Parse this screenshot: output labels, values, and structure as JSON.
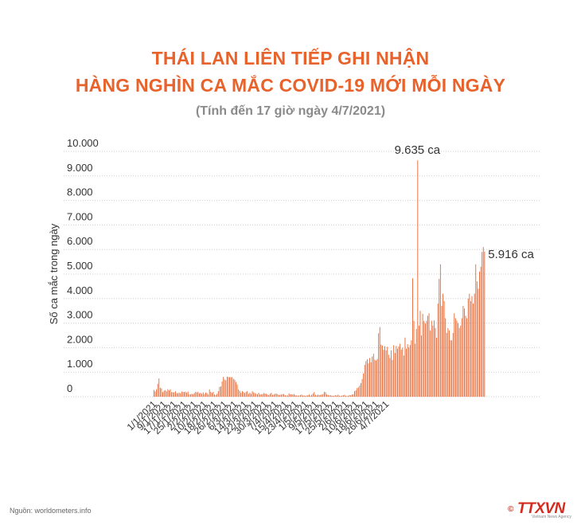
{
  "header": {
    "title_line1": "THÁI LAN LIÊN TIẾP GHI NHẬN",
    "title_line2": "HÀNG NGHÌN CA MẮC COVID-19 MỚI MỖI NGÀY",
    "subtitle": "(Tính đến 17 giờ ngày 4/7/2021)"
  },
  "footer": {
    "source": "Nguồn: worldometers.info",
    "logo_text": "TTXVN",
    "logo_sub": "Vietnam News Agency"
  },
  "colors": {
    "title": "#e8622c",
    "bar": "#e8622c",
    "axis_text": "#333333",
    "grid": "#cfcfcf"
  },
  "chart_data": {
    "type": "bar",
    "title": "",
    "xlabel": "",
    "ylabel": "Số ca mắc trong ngày",
    "ylim": [
      0,
      10000
    ],
    "y_ticks": [
      "0",
      "1.000",
      "2.000",
      "3.000",
      "4.000",
      "5.000",
      "6.000",
      "7.000",
      "8.000",
      "9.000",
      "10.000"
    ],
    "grid": true,
    "x_tick_labels": [
      "1/1/2021",
      "9/1/2021",
      "17/1/2021",
      "25/1/2021",
      "2/2/2021",
      "10/2/2021",
      "18/2/2021",
      "26/2/2021",
      "6/3/2021",
      "14/3/2021",
      "22/3/2021",
      "30/3/2021",
      "7/4/2021",
      "15/4/2021",
      "23/4/2021",
      "1/5/2021",
      "9/5/2021",
      "17/5/2021",
      "25/5/2021",
      "2/6/2021",
      "10/6/2021",
      "18/6/2021",
      "26/6/2021",
      "4/7/2021"
    ],
    "annotations": [
      {
        "text": "9.635 ca",
        "value": 9635
      },
      {
        "text": "5.916 ca",
        "value": 5916
      }
    ],
    "series": [
      {
        "values": [
          279,
          216,
          305,
          527,
          745,
          365,
          339,
          188,
          249,
          271,
          222,
          308,
          258,
          300,
          187,
          188,
          178,
          222,
          141,
          146,
          171,
          141,
          215,
          198,
          194,
          211,
          168,
          208,
          96,
          95,
          123,
          100,
          150,
          200,
          180,
          200,
          140,
          160,
          120,
          180,
          110,
          170,
          150,
          90,
          300,
          200,
          160,
          200,
          90,
          70,
          120,
          230,
          400,
          420,
          620,
          806,
          698,
          669,
          820,
          802,
          800,
          797,
          800,
          729,
          690,
          600,
          500,
          300,
          241,
          158,
          230,
          190,
          150,
          200,
          230,
          120,
          170,
          120,
          230,
          180,
          150,
          120,
          100,
          160,
          90,
          100,
          110,
          150,
          130,
          120,
          90,
          70,
          120,
          160,
          80,
          90,
          120,
          130,
          100,
          70,
          80,
          90,
          110,
          110,
          60,
          50,
          50,
          140,
          100,
          100,
          90,
          110,
          70,
          50,
          50,
          50,
          70,
          90,
          50,
          50,
          40,
          50,
          60,
          90,
          40,
          80,
          130,
          190,
          80,
          50,
          85,
          70,
          78,
          90,
          110,
          200,
          185,
          93,
          74,
          61,
          60,
          41,
          40,
          42,
          70,
          50,
          85,
          40,
          30,
          50,
          60,
          80,
          40,
          30,
          45,
          70,
          60,
          90,
          100,
          230,
          260,
          350,
          380,
          460,
          560,
          720,
          950,
          1300,
          1453,
          1530,
          1360,
          1580,
          1400,
          1640,
          1750,
          1510,
          1480,
          1540,
          2590,
          2840,
          2120,
          2090,
          1910,
          2060,
          1890,
          2040,
          1710,
          1580,
          1890,
          1500,
          2100,
          1780,
          2070,
          1960,
          2050,
          2160,
          1920,
          2000,
          1680,
          2410,
          1960,
          2140,
          2020,
          2110,
          2300,
          4830,
          3090,
          2160,
          2760,
          9635,
          2900,
          3500,
          2500,
          3380,
          3090,
          2990,
          3100,
          3300,
          3400,
          2700,
          3100,
          2900,
          3110,
          2800,
          2400,
          3800,
          4800,
          5400,
          3700,
          4200,
          3900,
          3200,
          2600,
          2800,
          2700,
          2300,
          2300,
          2600,
          3400,
          3200,
          3100,
          3000,
          2800,
          2900,
          3200,
          3700,
          3600,
          3300,
          3200,
          4000,
          4200,
          3900,
          4100,
          3800,
          4200,
          5400,
          4700,
          4400,
          5100,
          5300,
          5900,
          6100,
          5916
        ]
      }
    ]
  }
}
